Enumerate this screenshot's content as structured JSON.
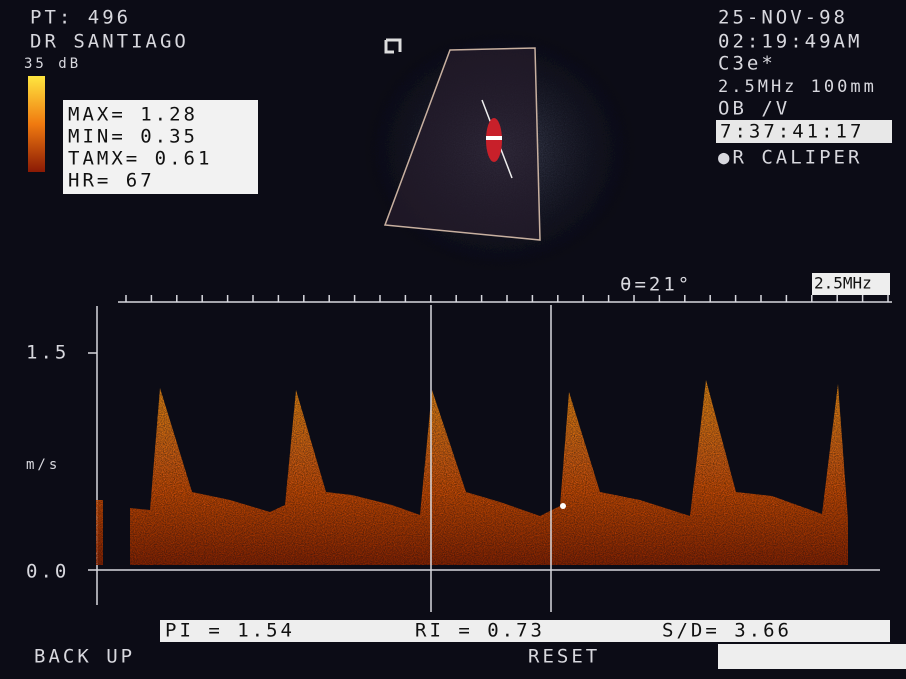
{
  "header": {
    "patient": "PT: 496",
    "doctor": "DR SANTIAGO",
    "gain": "35 dB"
  },
  "measurements": {
    "max": "MAX= 1.28",
    "min": "MIN= 0.35",
    "tamx": "TAMX= 0.61",
    "hr": "HR= 67"
  },
  "status": {
    "date": "25-NOV-98",
    "time": "02:19:49AM",
    "probe": "C3e*",
    "frequency_depth": "2.5MHz 100mm",
    "preset": "OB /V",
    "timer": "7:37:41:17",
    "mode": "●R CALIPER"
  },
  "image": {
    "angle": "θ=21°",
    "frequency": "2.5MHz"
  },
  "spectrum": {
    "y_top_label": "1.5",
    "unit": "m/s",
    "y_zero_label": "0.0"
  },
  "indices": {
    "pi": "PI = 1.54",
    "ri": "RI = 0.73",
    "sd": "S/D= 3.66"
  },
  "menu": {
    "back_up": "BACK UP",
    "reset": "RESET"
  }
}
